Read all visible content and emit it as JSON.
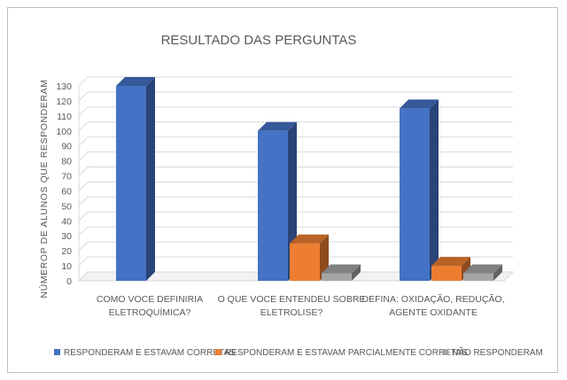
{
  "chart_data": {
    "type": "bar",
    "title": "RESULTADO DAS PERGUNTAS",
    "xlabel": "",
    "ylabel": "NÚMEROP DE ALUNOS QUE RESPONDERAM",
    "ylim": [
      0,
      130
    ],
    "yticks": [
      0,
      10,
      20,
      30,
      40,
      50,
      60,
      70,
      80,
      90,
      100,
      110,
      120,
      130
    ],
    "categories": [
      [
        "COMO VOCE DEFINIRIA",
        "ELETROQUÍMICA?"
      ],
      [
        "O QUE VOCE ENTENDEU SOBRE",
        "ELETROLISE?"
      ],
      [
        "DEFINA: OXIDAÇÃO, REDUÇÃO,",
        "AGENTE OXIDANTE"
      ]
    ],
    "series": [
      {
        "name": "RESPONDERAM E ESTAVAM CORRETAS",
        "color": "#4472c4",
        "values": [
          130,
          100,
          115
        ]
      },
      {
        "name": "RESPONDERAM E ESTAVAM PARCIALMENTE CORRETAS",
        "color": "#ed7d31",
        "values": [
          0,
          25,
          10
        ]
      },
      {
        "name": "NÃO RESPONDERAM",
        "color": "#a5a5a5",
        "values": [
          0,
          5,
          5
        ]
      }
    ],
    "grid": true,
    "legend_position": "bottom",
    "style": "3d"
  }
}
